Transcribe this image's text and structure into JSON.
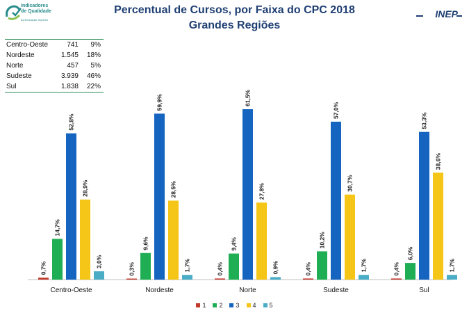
{
  "logo": {
    "name": "Indicadores\nde Qualidade",
    "subtitle": "da Educação Superior",
    "icon": "quality-indicators-logo-icon",
    "color": "#2a8b8b"
  },
  "brand": {
    "name": "INEP"
  },
  "summary_table": [
    {
      "region": "Centro-Oeste",
      "count": "741",
      "percent": "9%"
    },
    {
      "region": "Nordeste",
      "count": "1.545",
      "percent": "18%"
    },
    {
      "region": "Norte",
      "count": "457",
      "percent": "5%"
    },
    {
      "region": "Sudeste",
      "count": "3.939",
      "percent": "46%"
    },
    {
      "region": "Sul",
      "count": "1.838",
      "percent": "22%"
    }
  ],
  "chart_data": {
    "type": "bar",
    "title": "Percentual de Cursos, por Faixa do CPC 2018",
    "subtitle": "Grandes Regiões",
    "categories": [
      "Centro-Oeste",
      "Nordeste",
      "Norte",
      "Sudeste",
      "Sul"
    ],
    "series": [
      {
        "name": "1",
        "color": "#c0392b",
        "values": [
          0.7,
          0.3,
          0.4,
          0.4,
          0.4
        ],
        "labels": [
          "0,7%",
          "0,3%",
          "0,4%",
          "0,4%",
          "0,4%"
        ]
      },
      {
        "name": "2",
        "color": "#1fae54",
        "values": [
          14.7,
          9.6,
          9.4,
          10.2,
          6.0
        ],
        "labels": [
          "14,7%",
          "9,6%",
          "9,4%",
          "10,2%",
          "6,0%"
        ]
      },
      {
        "name": "3",
        "color": "#1565c0",
        "values": [
          52.8,
          59.9,
          61.5,
          57.0,
          53.3
        ],
        "labels": [
          "52,8%",
          "59,9%",
          "61,5%",
          "57,0%",
          "53,3%"
        ]
      },
      {
        "name": "4",
        "color": "#f5c518",
        "values": [
          28.9,
          28.5,
          27.8,
          30.7,
          38.6
        ],
        "labels": [
          "28,9%",
          "28,5%",
          "27,8%",
          "30,7%",
          "38,6%"
        ]
      },
      {
        "name": "5",
        "color": "#4bacc6",
        "values": [
          3.0,
          1.7,
          0.9,
          1.7,
          1.7
        ],
        "labels": [
          "3,0%",
          "1,7%",
          "0,9%",
          "1,7%",
          "1,7%"
        ]
      }
    ],
    "ylim": [
      0,
      65
    ],
    "grid": false,
    "legend_position": "bottom-center"
  }
}
